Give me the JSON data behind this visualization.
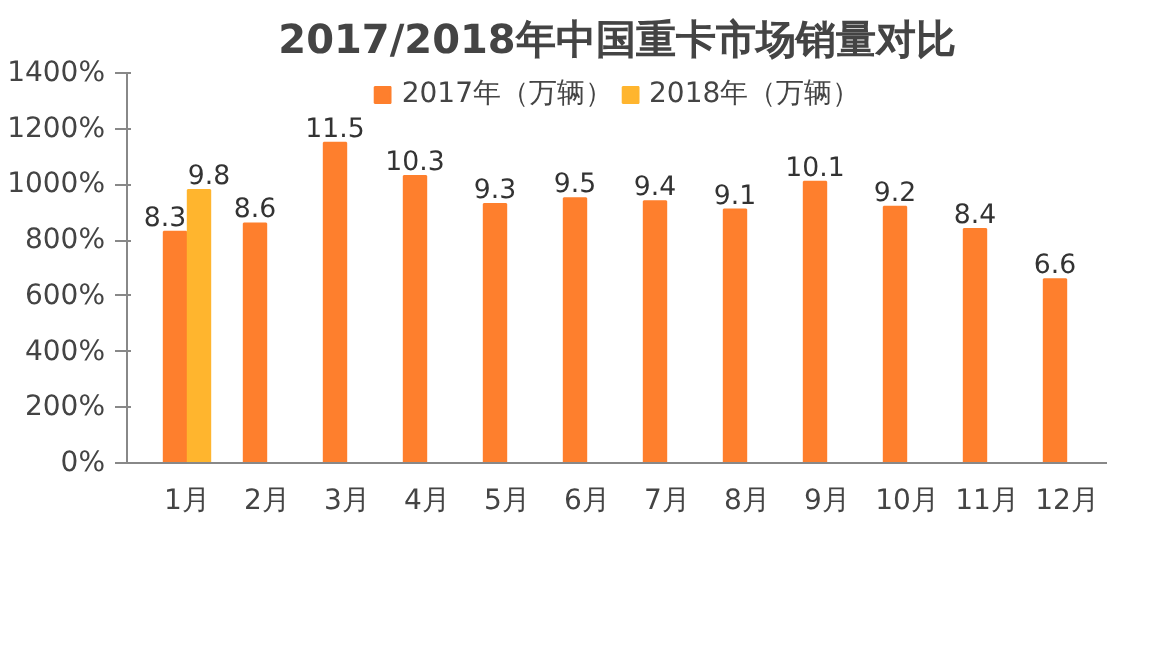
{
  "chart_data": {
    "type": "bar",
    "title": "2017/2018年中国重卡市场销量对比",
    "categories": [
      "1月",
      "2月",
      "3月",
      "4月",
      "5月",
      "6月",
      "7月",
      "8月",
      "9月",
      "10月",
      "11月",
      "12月"
    ],
    "series": [
      {
        "name": "2017年（万辆）",
        "color": "#fe7f2d",
        "values": [
          8.3,
          8.6,
          11.5,
          10.3,
          9.3,
          9.5,
          9.4,
          9.1,
          10.1,
          9.2,
          8.4,
          6.6
        ]
      },
      {
        "name": "2018年（万辆）",
        "color": "#ffb52e",
        "values": [
          9.8,
          null,
          null,
          null,
          null,
          null,
          null,
          null,
          null,
          null,
          null,
          null
        ]
      }
    ],
    "ylim": [
      0,
      14
    ],
    "yticks": [
      {
        "value": 0,
        "label": "0%"
      },
      {
        "value": 2,
        "label": "200%"
      },
      {
        "value": 4,
        "label": "400%"
      },
      {
        "value": 6,
        "label": "600%"
      },
      {
        "value": 8,
        "label": "800%"
      },
      {
        "value": 10,
        "label": "1000%"
      },
      {
        "value": 12,
        "label": "1200%"
      },
      {
        "value": 14,
        "label": "1400%"
      }
    ],
    "data_labels": true,
    "legend": "top",
    "grid": false
  }
}
